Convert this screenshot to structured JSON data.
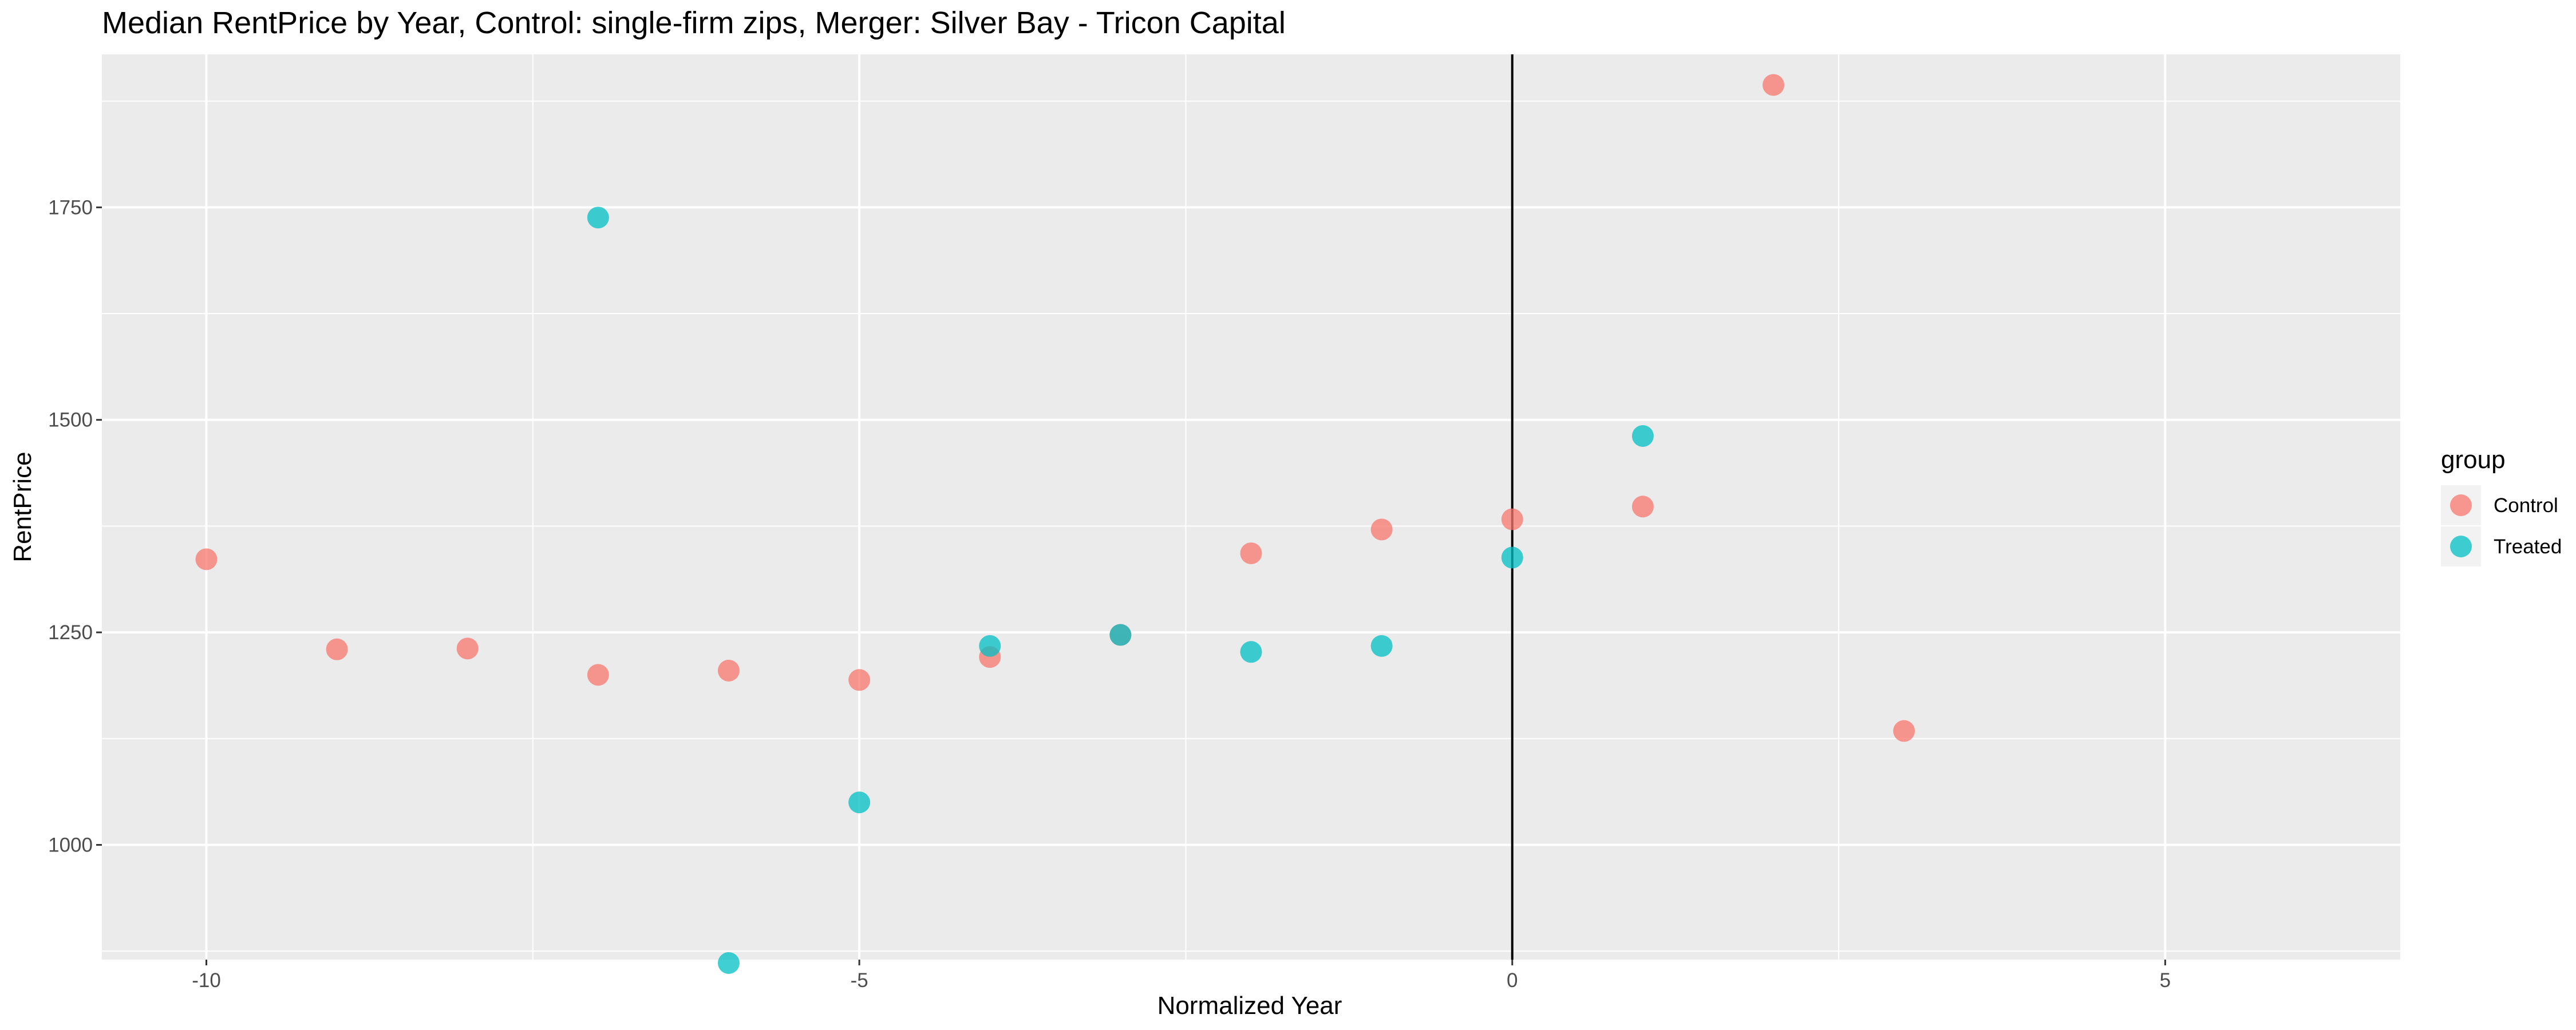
{
  "chart_data": {
    "type": "scatter",
    "title": "Median RentPrice by Year, Control: single-firm zips, Merger: Silver Bay - Tricon Capital",
    "xlabel": "Normalized Year",
    "ylabel": "RentPrice",
    "xlim": [
      -10.8,
      6.8
    ],
    "ylim": [
      865,
      1930
    ],
    "x_ticks": [
      -10,
      -5,
      0,
      5
    ],
    "x_tick_labels": [
      "-10",
      "-5",
      "0",
      "5"
    ],
    "y_ticks": [
      1000,
      1250,
      1500,
      1750
    ],
    "y_tick_labels": [
      "1000",
      "1250",
      "1500",
      "1750"
    ],
    "vline_x": 0,
    "grid": true,
    "legend": {
      "title": "group",
      "position": "right"
    },
    "series": [
      {
        "name": "Control",
        "color": "#F8766D",
        "points": [
          {
            "x": -10,
            "y": 1336
          },
          {
            "x": -9,
            "y": 1230
          },
          {
            "x": -8,
            "y": 1231
          },
          {
            "x": -7,
            "y": 1200
          },
          {
            "x": -6,
            "y": 1205
          },
          {
            "x": -5,
            "y": 1194
          },
          {
            "x": -4,
            "y": 1221
          },
          {
            "x": -3,
            "y": 1247
          },
          {
            "x": -2,
            "y": 1343
          },
          {
            "x": -1,
            "y": 1371
          },
          {
            "x": 0,
            "y": 1383
          },
          {
            "x": 1,
            "y": 1398
          },
          {
            "x": 2,
            "y": 1894
          },
          {
            "x": 3,
            "y": 1134
          }
        ]
      },
      {
        "name": "Treated",
        "color": "#00BFC4",
        "points": [
          {
            "x": -7,
            "y": 1738
          },
          {
            "x": -6,
            "y": 861
          },
          {
            "x": -5,
            "y": 1050
          },
          {
            "x": -4,
            "y": 1234
          },
          {
            "x": -3,
            "y": 1247
          },
          {
            "x": -2,
            "y": 1227
          },
          {
            "x": -1,
            "y": 1234
          },
          {
            "x": 0,
            "y": 1338
          },
          {
            "x": 1,
            "y": 1481
          }
        ]
      }
    ]
  }
}
